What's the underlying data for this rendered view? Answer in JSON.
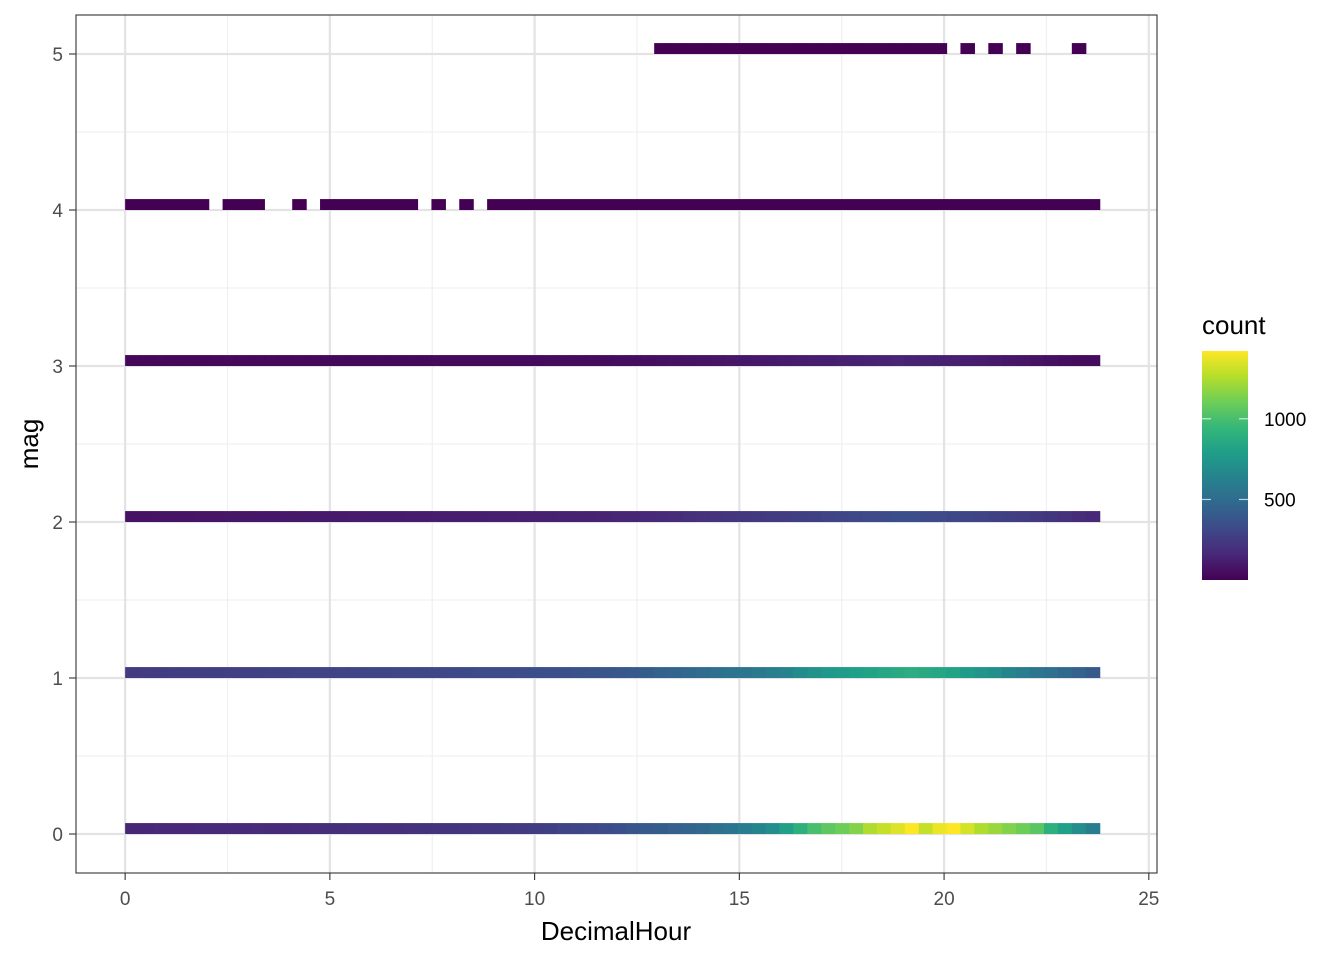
{
  "chart_data": {
    "type": "heatmap",
    "xlabel": "DecimalHour",
    "ylabel": "mag",
    "xlim": [
      -1.2,
      25.2
    ],
    "ylim": [
      -0.25,
      5.25
    ],
    "x_ticks": [
      0,
      5,
      10,
      15,
      20,
      25
    ],
    "x_tick_labels": [
      "0",
      "5",
      "10",
      "15",
      "20",
      "25"
    ],
    "y_ticks": [
      0,
      1,
      2,
      3,
      4,
      5
    ],
    "y_tick_labels": [
      "0",
      "1",
      "2",
      "3",
      "4",
      "5"
    ],
    "grid": true,
    "bin_width_hours": 0.34,
    "bin_height_mag": 0.07,
    "bins_per_row": 70,
    "legend": {
      "title": "count",
      "position": "right",
      "min": 1,
      "max": 1420,
      "breaks": [
        500,
        1000
      ],
      "break_labels": [
        "500",
        "1000"
      ],
      "colormap": "viridis"
    },
    "rows": [
      {
        "mag": 0,
        "counts": [
          150,
          155,
          160,
          162,
          165,
          168,
          170,
          172,
          175,
          178,
          172,
          175,
          180,
          182,
          185,
          188,
          190,
          192,
          195,
          198,
          200,
          205,
          210,
          215,
          220,
          225,
          230,
          240,
          250,
          260,
          270,
          290,
          300,
          310,
          330,
          350,
          380,
          400,
          420,
          440,
          460,
          480,
          520,
          560,
          600,
          650,
          700,
          800,
          900,
          1000,
          1060,
          1100,
          1150,
          1250,
          1300,
          1350,
          1420,
          1300,
          1380,
          1420,
          1330,
          1250,
          1200,
          1150,
          1100,
          1050,
          900,
          800,
          700,
          600
        ]
      },
      {
        "mag": 1,
        "counts": [
          250,
          255,
          260,
          262,
          265,
          268,
          270,
          272,
          275,
          280,
          282,
          285,
          288,
          290,
          292,
          295,
          298,
          300,
          302,
          305,
          308,
          310,
          312,
          315,
          318,
          320,
          325,
          330,
          335,
          340,
          345,
          350,
          360,
          370,
          380,
          390,
          400,
          420,
          440,
          460,
          480,
          500,
          520,
          540,
          560,
          580,
          600,
          640,
          680,
          720,
          760,
          780,
          800,
          820,
          840,
          860,
          880,
          860,
          840,
          820,
          780,
          740,
          700,
          650,
          600,
          560,
          520,
          480,
          440,
          400
        ]
      },
      {
        "mag": 2,
        "counts": [
          70,
          72,
          74,
          76,
          78,
          80,
          82,
          84,
          86,
          88,
          90,
          92,
          94,
          96,
          98,
          100,
          102,
          104,
          106,
          108,
          110,
          112,
          114,
          116,
          118,
          120,
          122,
          124,
          126,
          128,
          130,
          132,
          134,
          136,
          140,
          145,
          150,
          160,
          170,
          180,
          190,
          200,
          210,
          220,
          230,
          240,
          250,
          260,
          270,
          280,
          290,
          300,
          310,
          320,
          330,
          340,
          340,
          330,
          320,
          310,
          300,
          290,
          280,
          270,
          260,
          240,
          220,
          200,
          180,
          160
        ]
      },
      {
        "mag": 3,
        "counts": [
          25,
          25,
          26,
          26,
          27,
          27,
          28,
          28,
          29,
          29,
          30,
          30,
          31,
          31,
          32,
          32,
          33,
          33,
          34,
          34,
          35,
          35,
          36,
          36,
          37,
          37,
          38,
          38,
          39,
          39,
          40,
          40,
          42,
          44,
          46,
          48,
          50,
          55,
          60,
          65,
          70,
          75,
          80,
          85,
          90,
          95,
          100,
          105,
          110,
          115,
          120,
          125,
          130,
          135,
          140,
          145,
          140,
          135,
          130,
          125,
          120,
          110,
          100,
          90,
          80,
          70,
          60,
          50,
          45,
          40
        ]
      },
      {
        "mag": 4,
        "counts": [
          1,
          1,
          1,
          1,
          1,
          1,
          0,
          1,
          1,
          1,
          0,
          0,
          1,
          0,
          1,
          1,
          1,
          1,
          1,
          1,
          1,
          0,
          1,
          0,
          1,
          0,
          1,
          1,
          1,
          1,
          1,
          1,
          1,
          1,
          1,
          1,
          1,
          1,
          1,
          1,
          1,
          1,
          1,
          1,
          1,
          1,
          1,
          1,
          1,
          1,
          1,
          1,
          1,
          1,
          1,
          1,
          1,
          1,
          1,
          1,
          1,
          1,
          1,
          1,
          1,
          1,
          1,
          1,
          1,
          1
        ]
      },
      {
        "mag": 5,
        "counts": [
          0,
          0,
          0,
          0,
          0,
          0,
          0,
          0,
          0,
          0,
          0,
          0,
          0,
          0,
          0,
          0,
          0,
          0,
          0,
          0,
          0,
          0,
          0,
          0,
          0,
          0,
          0,
          0,
          0,
          0,
          0,
          0,
          0,
          0,
          0,
          0,
          0,
          0,
          1,
          1,
          1,
          1,
          1,
          1,
          1,
          1,
          1,
          1,
          1,
          1,
          1,
          1,
          1,
          1,
          1,
          1,
          1,
          1,
          1,
          0,
          1,
          0,
          1,
          0,
          1,
          0,
          0,
          0,
          1,
          0
        ]
      }
    ]
  }
}
